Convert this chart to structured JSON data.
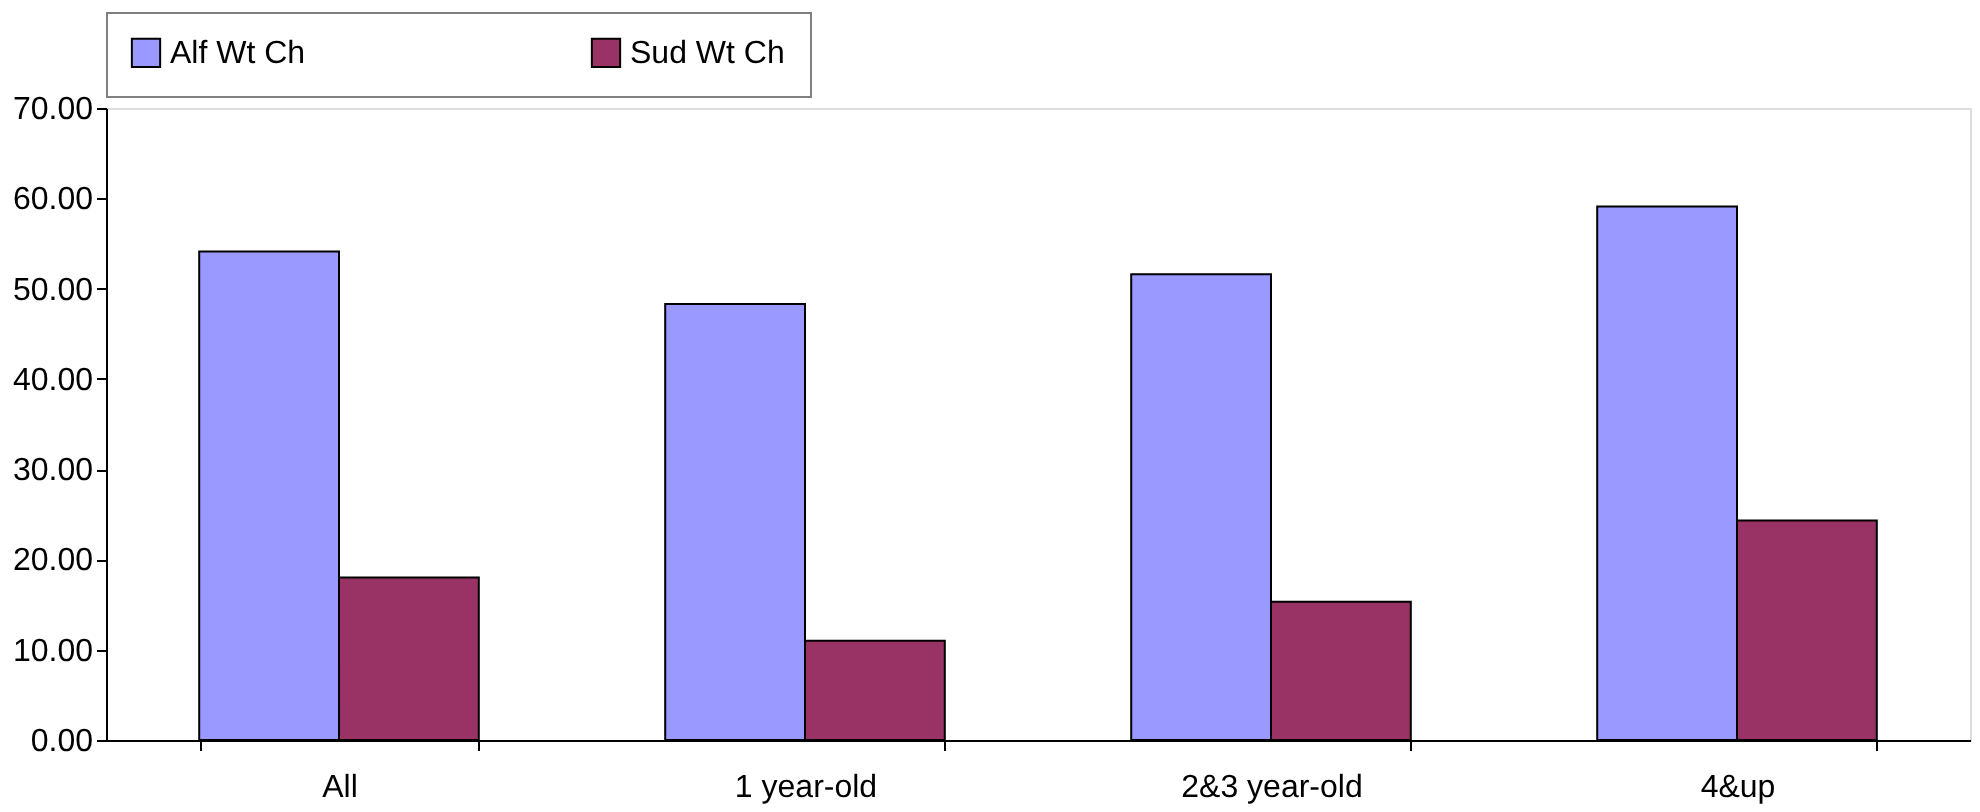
{
  "chart_data": {
    "type": "bar",
    "categories": [
      "All",
      "1 year-old",
      "2&3 year-old",
      "4&up"
    ],
    "series": [
      {
        "name": "Alf Wt Ch",
        "color": "#9999ff",
        "values": [
          54.1,
          48.3,
          51.6,
          59.1
        ]
      },
      {
        "name": "Sud Wt Ch",
        "color": "#993366",
        "values": [
          18.0,
          11.0,
          15.3,
          24.3
        ]
      }
    ],
    "ylim": [
      0,
      70
    ],
    "yticks": [
      {
        "value": 0,
        "label": "0.00"
      },
      {
        "value": 10,
        "label": "10.00"
      },
      {
        "value": 20,
        "label": "20.00"
      },
      {
        "value": 30,
        "label": "30.00"
      },
      {
        "value": 40,
        "label": "40.00"
      },
      {
        "value": 50,
        "label": "50.00"
      },
      {
        "value": 60,
        "label": "60.00"
      },
      {
        "value": 70,
        "label": "70.00"
      }
    ],
    "grid": false,
    "legend": "top"
  }
}
